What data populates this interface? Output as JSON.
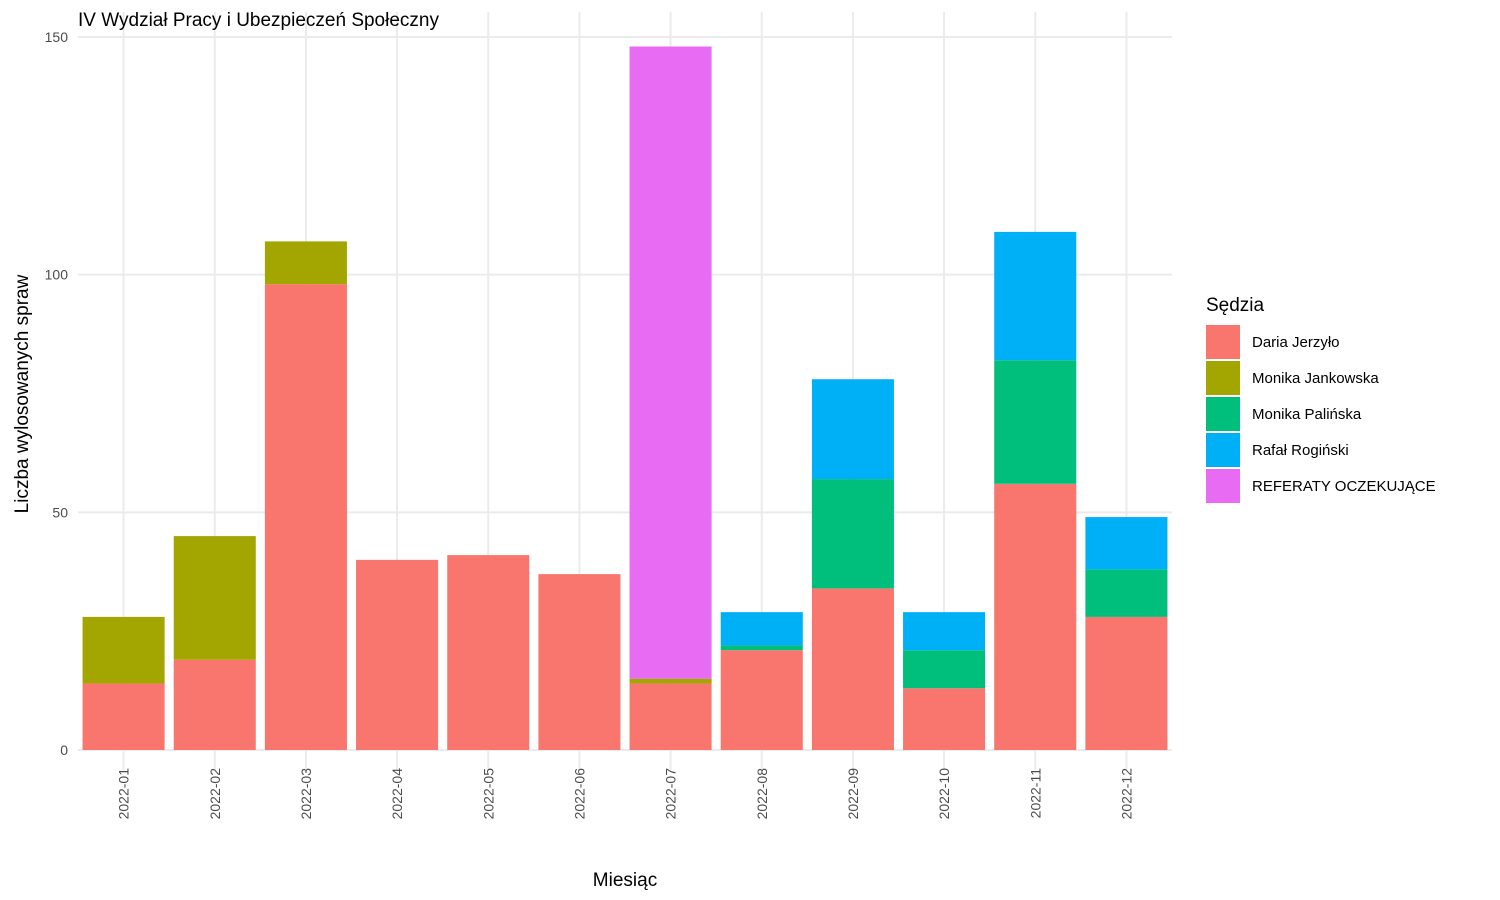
{
  "chart_data": {
    "type": "bar",
    "stacked": true,
    "title": "IV Wydział Pracy i Ubezpieczeń Społeczny",
    "xlabel": "Miesiąc",
    "ylabel": "Liczba wylosowanych spraw",
    "ylim": [
      0,
      150
    ],
    "yticks": [
      0,
      50,
      100,
      150
    ],
    "grid": true,
    "legend_position": "right",
    "legend_title": "Sędzia",
    "categories": [
      "2022-01",
      "2022-02",
      "2022-03",
      "2022-04",
      "2022-05",
      "2022-06",
      "2022-07",
      "2022-08",
      "2022-09",
      "2022-10",
      "2022-11",
      "2022-12"
    ],
    "series": [
      {
        "name": "Daria Jerzyło",
        "color": "#F8766D",
        "values": [
          14,
          19,
          98,
          40,
          41,
          37,
          14,
          21,
          34,
          13,
          56,
          28
        ]
      },
      {
        "name": "Monika Jankowska",
        "color": "#A3A500",
        "values": [
          14,
          26,
          9,
          0,
          0,
          0,
          1,
          0,
          0,
          0,
          0,
          0
        ]
      },
      {
        "name": "Monika Palińska",
        "color": "#00BF7D",
        "values": [
          0,
          0,
          0,
          0,
          0,
          0,
          0,
          1,
          23,
          8,
          26,
          10
        ]
      },
      {
        "name": "Rafał Rogiński",
        "color": "#00B0F6",
        "values": [
          0,
          0,
          0,
          0,
          0,
          0,
          0,
          7,
          21,
          8,
          27,
          11
        ]
      },
      {
        "name": "REFERATY OCZEKUJĄCE",
        "color": "#E76BF3",
        "values": [
          0,
          0,
          0,
          0,
          0,
          0,
          133,
          0,
          0,
          0,
          0,
          0
        ]
      }
    ]
  }
}
